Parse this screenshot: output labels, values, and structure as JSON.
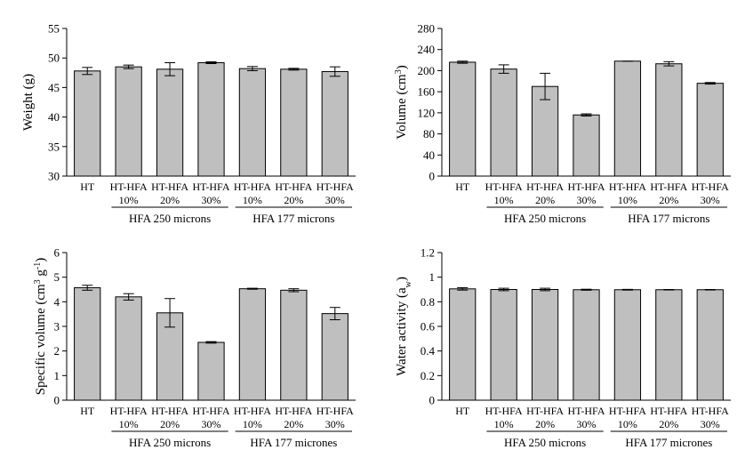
{
  "chart_data": [
    {
      "type": "bar",
      "ylabel": "Weight (g)",
      "ylim": [
        30,
        55
      ],
      "yticks": [
        30,
        35,
        40,
        45,
        50,
        55
      ],
      "categories": [
        "HT",
        "HT-HFA",
        "HT-HFA",
        "HT-HFA",
        "HT-HFA",
        "HT-HFA",
        "HT-HFA"
      ],
      "subcategories": [
        "",
        "10%",
        "20%",
        "30%",
        "10%",
        "20%",
        "30%"
      ],
      "groups": [
        {
          "label": "HFA 250 microns",
          "start": 1,
          "end": 3
        },
        {
          "label": "HFA 177 microns",
          "start": 4,
          "end": 6
        }
      ],
      "values": [
        47.8,
        48.5,
        48.1,
        49.2,
        48.2,
        48.1,
        47.7
      ],
      "errors": [
        0.6,
        0.3,
        1.1,
        0.15,
        0.35,
        0.15,
        0.8
      ]
    },
    {
      "type": "bar",
      "ylabel": "Volume (cm",
      "ylabel_sup": "3",
      "ylabel_end": ")",
      "ylim": [
        0,
        280
      ],
      "yticks": [
        0,
        40,
        80,
        120,
        160,
        200,
        240,
        280
      ],
      "categories": [
        "HT",
        "HT-HFA",
        "HT-HFA",
        "HT-HFA",
        "HT-HFA",
        "HT-HFA",
        "HT-HFA"
      ],
      "subcategories": [
        "",
        "10%",
        "20%",
        "30%",
        "10%",
        "20%",
        "30%"
      ],
      "groups": [
        {
          "label": "HFA 250 microns",
          "start": 1,
          "end": 3
        },
        {
          "label": "HFA 177 microns",
          "start": 4,
          "end": 6
        }
      ],
      "values": [
        216,
        203,
        170,
        116,
        218,
        213,
        176
      ],
      "errors": [
        2,
        8,
        25,
        2,
        0,
        4,
        1.5
      ]
    },
    {
      "type": "bar",
      "ylabel": "Specific volume (cm",
      "ylabel_sup": "3",
      "ylabel_mid": " g",
      "ylabel_sup2": "-1",
      "ylabel_end": ")",
      "ylim": [
        0,
        6
      ],
      "yticks": [
        0,
        1,
        2,
        3,
        4,
        5,
        6
      ],
      "categories": [
        "HT",
        "HT-HFA",
        "HT-HFA",
        "HT-HFA",
        "HT-HFA",
        "HT-HFA",
        "HT-HFA"
      ],
      "subcategories": [
        "",
        "10%",
        "20%",
        "30%",
        "10%",
        "20%",
        "30%"
      ],
      "groups": [
        {
          "label": "HFA 250 microns",
          "start": 1,
          "end": 3
        },
        {
          "label": "HFA 177 micrones",
          "start": 4,
          "end": 6
        }
      ],
      "values": [
        4.57,
        4.2,
        3.55,
        2.35,
        4.53,
        4.47,
        3.52
      ],
      "errors": [
        0.1,
        0.13,
        0.58,
        0.03,
        0.02,
        0.06,
        0.25
      ]
    },
    {
      "type": "bar",
      "ylabel": "Water activity (a",
      "ylabel_sub": "w",
      "ylabel_end": ")",
      "ylim": [
        0,
        1.2
      ],
      "yticks": [
        "0",
        "0.2",
        "0.4",
        "0.6",
        "0.8",
        "1",
        "1.2"
      ],
      "categories": [
        "HT",
        "HT-HFA",
        "HT-HFA",
        "HT-HFA",
        "HT-HFA",
        "HT-HFA",
        "HT-HFA"
      ],
      "subcategories": [
        "",
        "10%",
        "20%",
        "30%",
        "10%",
        "20%",
        "30%"
      ],
      "groups": [
        {
          "label": "HFA 250 microns",
          "start": 1,
          "end": 3
        },
        {
          "label": "HFA 177 micrones",
          "start": 4,
          "end": 6
        }
      ],
      "values": [
        0.905,
        0.9,
        0.9,
        0.898,
        0.898,
        0.898,
        0.898
      ],
      "errors": [
        0.01,
        0.01,
        0.01,
        0.004,
        0.003,
        0.002,
        0.002
      ]
    }
  ]
}
